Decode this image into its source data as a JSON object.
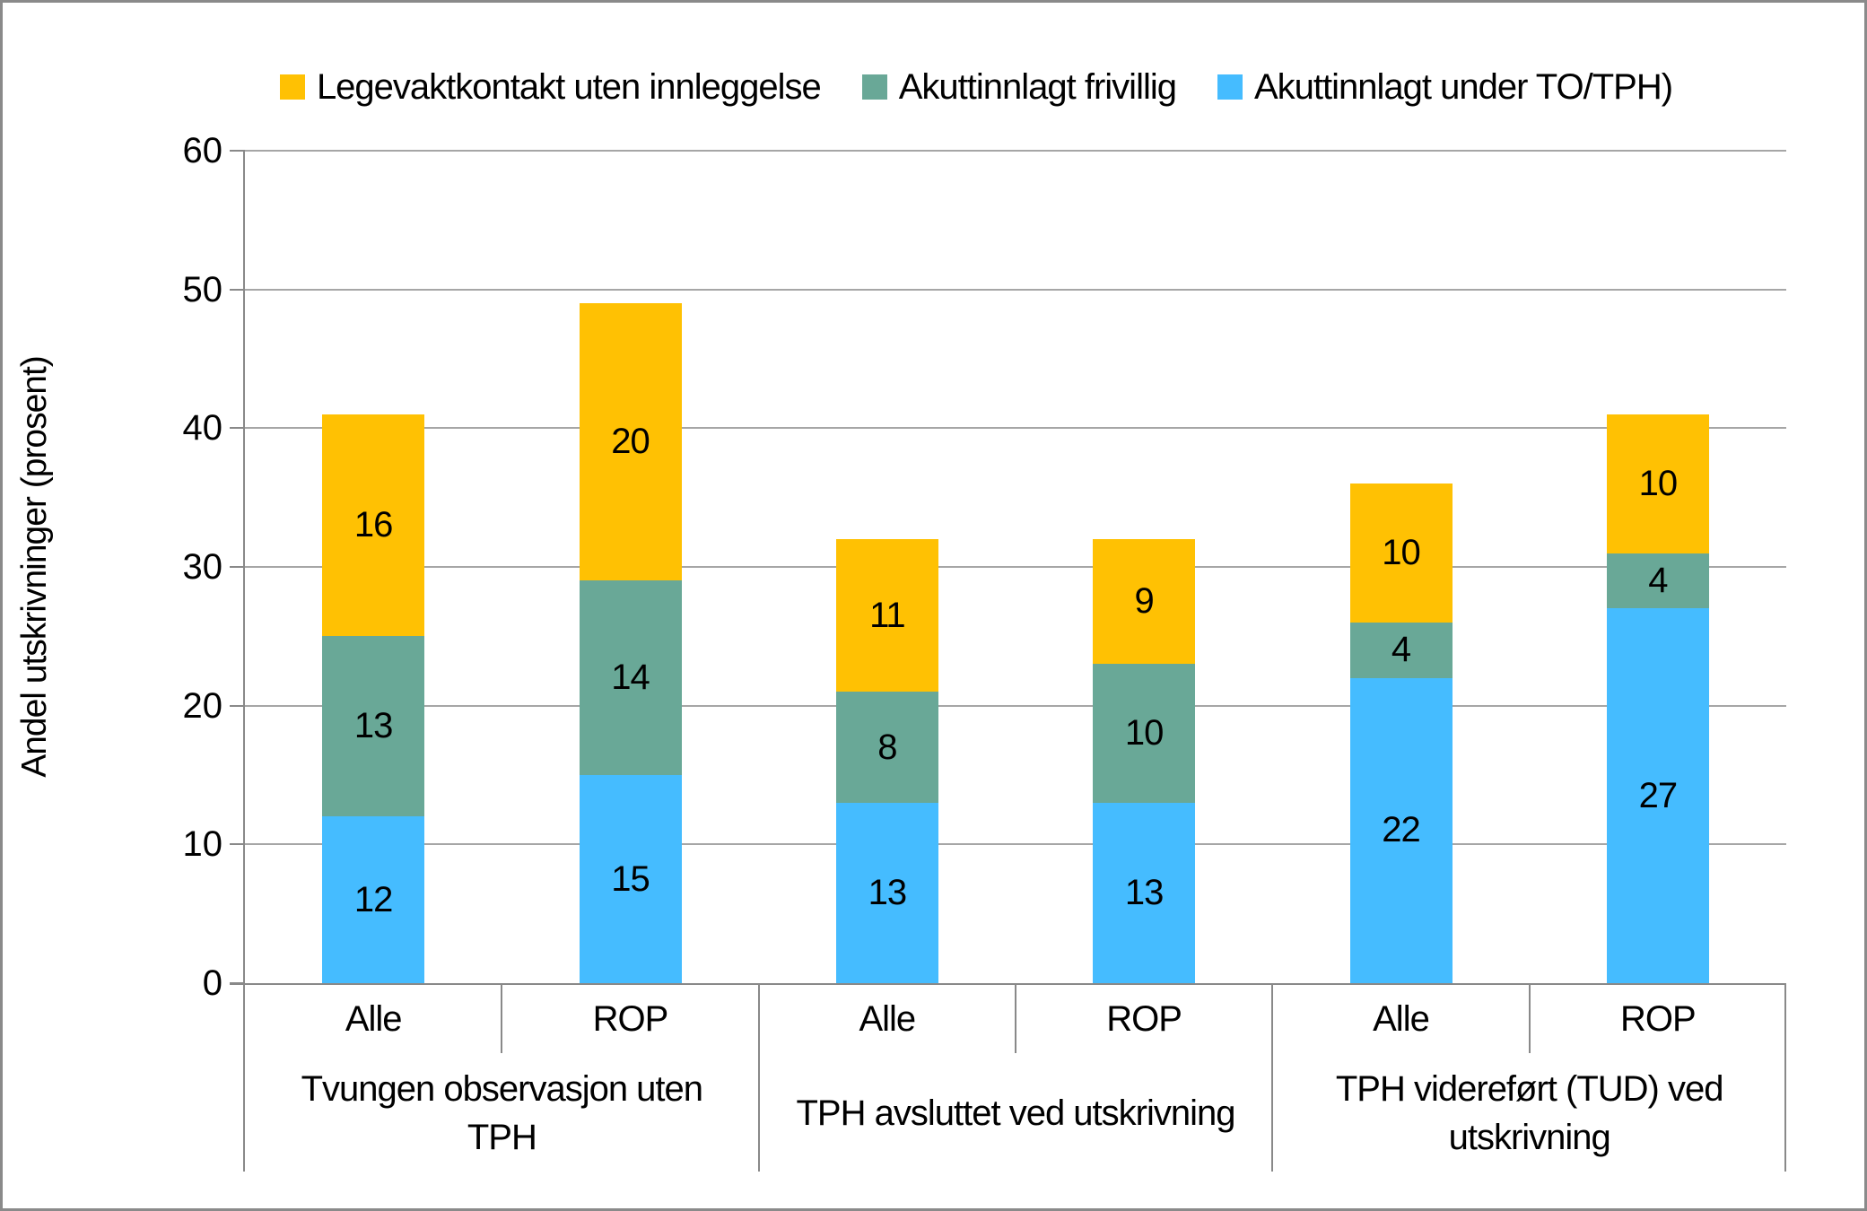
{
  "legend": [
    {
      "label": "Legevaktkontakt uten innleggelse",
      "color": "#FFC103"
    },
    {
      "label": "Akuttinnlagt frivillig",
      "color": "#69A897"
    },
    {
      "label": "Akuttinnlagt under TO/TPH)",
      "color": "#45BCFF"
    }
  ],
  "y_axis": {
    "title": "Andel utskrivninger (prosent)",
    "ticks": [
      0,
      10,
      20,
      30,
      40,
      50,
      60
    ],
    "min": 0,
    "max": 60
  },
  "colors": {
    "gridline": "#A6A6A6",
    "axis": "#898989",
    "label": "#000000"
  },
  "chart_data": {
    "type": "bar",
    "stacked": true,
    "title": "",
    "xlabel": "",
    "ylabel": "Andel utskrivninger (prosent)",
    "ylim": [
      0,
      60
    ],
    "grid": true,
    "legend_position": "top",
    "categories": [
      "Alle",
      "ROP",
      "Alle",
      "ROP",
      "Alle",
      "ROP"
    ],
    "groups": [
      {
        "label": "Tvungen observasjon uten TPH",
        "categories": [
          "Alle",
          "ROP"
        ]
      },
      {
        "label": "TPH avsluttet ved utskrivning",
        "categories": [
          "Alle",
          "ROP"
        ]
      },
      {
        "label": "TPH videreført (TUD) ved utskrivning",
        "categories": [
          "Alle",
          "ROP"
        ]
      }
    ],
    "series": [
      {
        "name": "Akuttinnlagt under TO/TPH)",
        "color": "#45BCFF",
        "values": [
          12,
          15,
          13,
          13,
          22,
          27
        ]
      },
      {
        "name": "Akuttinnlagt frivillig",
        "color": "#69A897",
        "values": [
          13,
          14,
          8,
          10,
          4,
          4
        ]
      },
      {
        "name": "Legevaktkontakt uten innleggelse",
        "color": "#FFC103",
        "values": [
          16,
          20,
          11,
          9,
          10,
          10
        ]
      }
    ]
  }
}
